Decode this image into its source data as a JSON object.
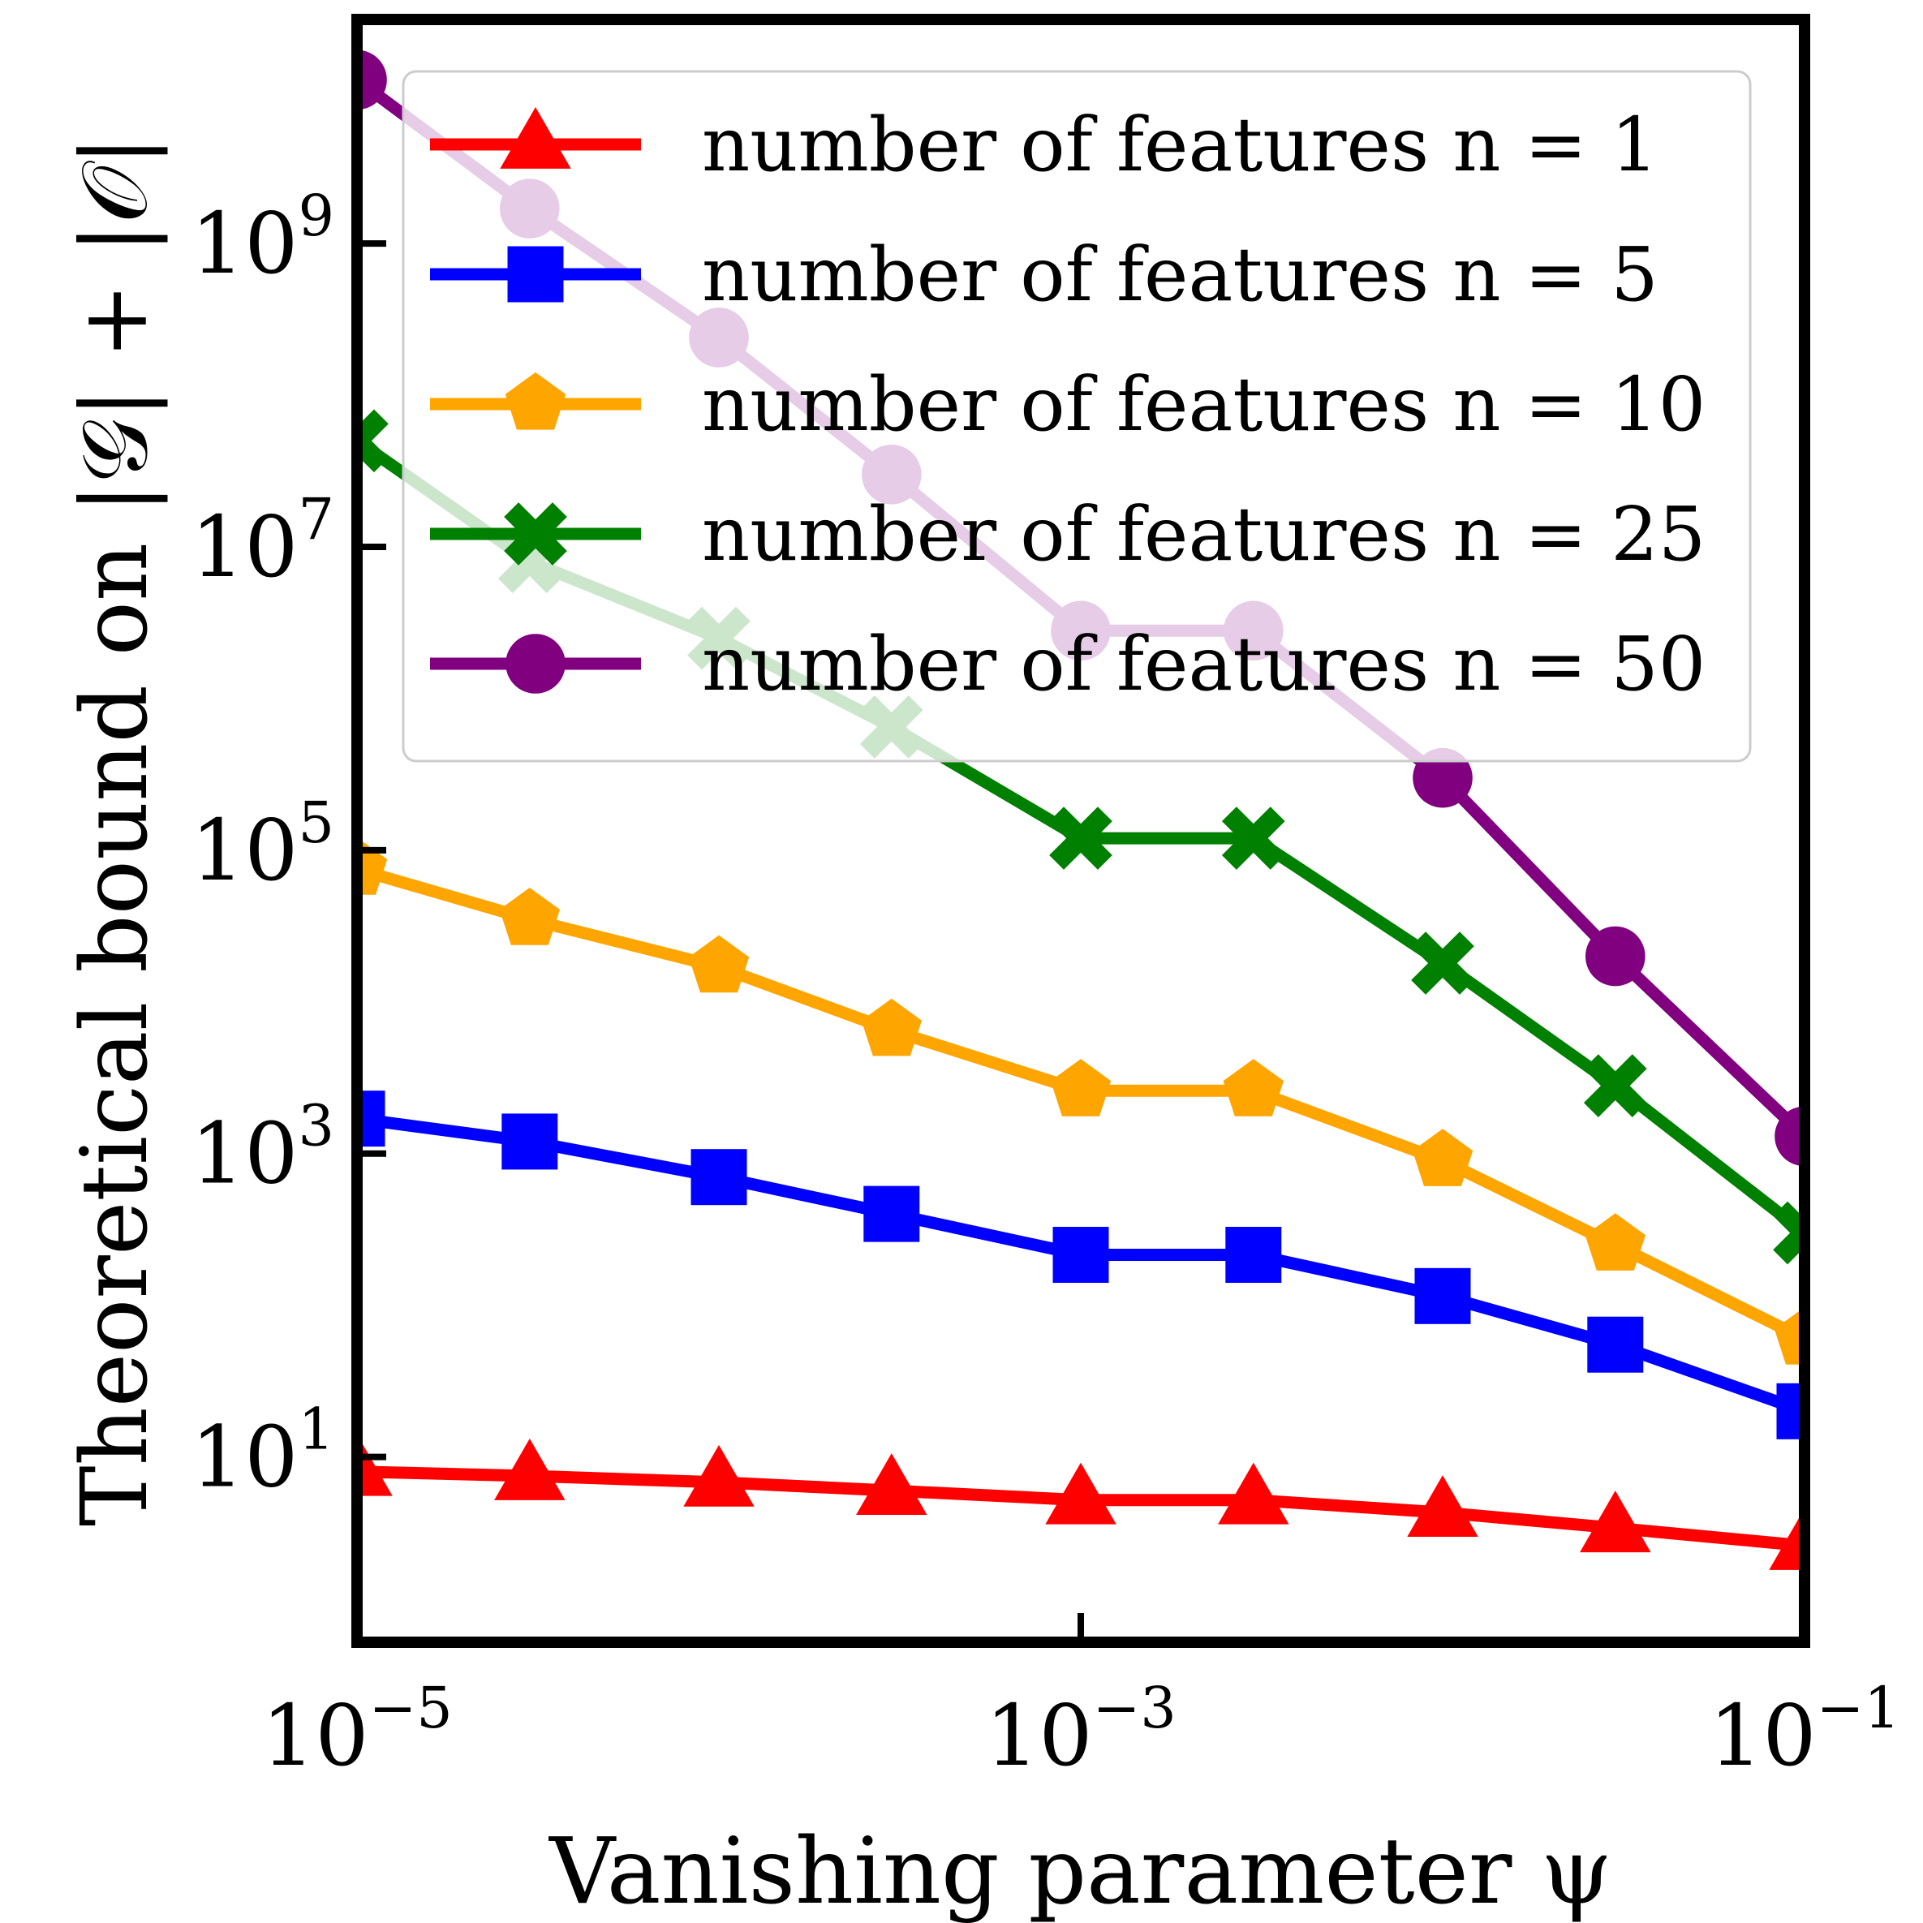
{
  "chart_data": {
    "type": "line",
    "xlabel": "Vanishing parameter ψ",
    "ylabel": "Theoretical bound on |𝒢| + |𝒪|",
    "x_scale": "log",
    "y_scale": "log",
    "xlim": [
      1e-05,
      0.1
    ],
    "ylim": [
      0.6,
      30000000000.0
    ],
    "grid": false,
    "legend_position": "top-right",
    "x_ticks": [
      {
        "base": "10",
        "exp": "−5"
      },
      {
        "base": "10",
        "exp": "−3"
      },
      {
        "base": "10",
        "exp": "−1"
      }
    ],
    "y_ticks": [
      {
        "base": "10",
        "exp": "1"
      },
      {
        "base": "10",
        "exp": "3"
      },
      {
        "base": "10",
        "exp": "5"
      },
      {
        "base": "10",
        "exp": "7"
      },
      {
        "base": "10",
        "exp": "9"
      }
    ],
    "x": [
      1e-05,
      3e-05,
      0.0001,
      0.0003,
      0.001,
      0.003,
      0.01,
      0.03,
      0.1
    ],
    "series": [
      {
        "name": "number of features n = 1",
        "color": "#ff0000",
        "marker": "triangle",
        "values": [
          8,
          7.5,
          6.8,
          6,
          5.2,
          5.2,
          4.3,
          3.4,
          2.6
        ]
      },
      {
        "name": "number of features n = 5",
        "color": "#0000ff",
        "marker": "square",
        "values": [
          1700,
          1200,
          700,
          400,
          215,
          215,
          115,
          55,
          20
        ]
      },
      {
        "name": "number of features n = 10",
        "color": "#ffa500",
        "marker": "pentagon",
        "values": [
          75000,
          35000,
          17000,
          6500,
          2600,
          2600,
          900,
          250,
          60
        ]
      },
      {
        "name": "number of features n = 25",
        "color": "#008000",
        "marker": "x",
        "values": [
          50000000,
          8000000,
          2500000,
          650000,
          120000,
          120000,
          18000,
          2800,
          300
        ]
      },
      {
        "name": "number of features n = 50",
        "color": "#800080",
        "marker": "circle",
        "values": [
          12000000000,
          1700000000,
          240000000,
          30000000,
          2800000,
          2800000,
          300000,
          20000,
          1300
        ]
      }
    ]
  }
}
